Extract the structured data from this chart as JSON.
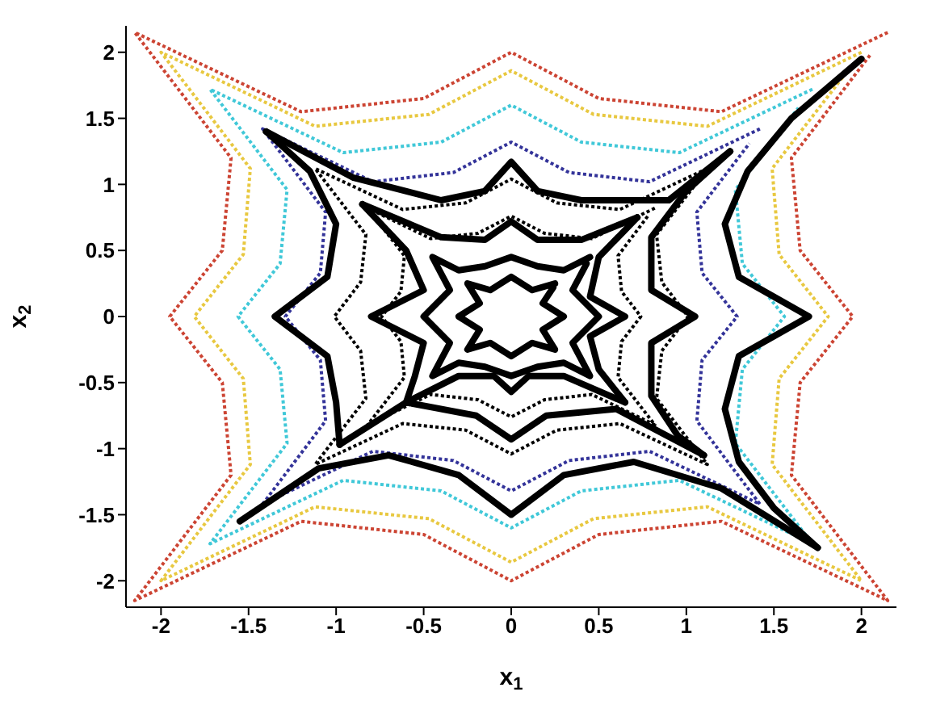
{
  "chart_data": {
    "type": "line",
    "xlabel": "x$_{1}$",
    "ylabel": "x$_{2}$",
    "xlim": [
      -2.2,
      2.2
    ],
    "ylim": [
      -2.2,
      2.2
    ],
    "xticks": [
      -2,
      -1.5,
      -1,
      -0.5,
      0,
      0.5,
      1,
      1.5,
      2
    ],
    "yticks": [
      -2,
      -1.5,
      -1,
      -0.5,
      0,
      0.5,
      1,
      1.5,
      2
    ],
    "grid": false,
    "legend": false,
    "marker": "none",
    "series": [
      {
        "color": "#cc4433",
        "line_style": "dotted",
        "x": [
          2.15,
          1.2,
          0.5,
          0,
          -0.5,
          -1.2,
          -2.15,
          -1.6,
          -1.65,
          -1.95,
          -1.65,
          -1.6,
          -2.15,
          -1.2,
          -0.5,
          0,
          0.5,
          1.2,
          2.15,
          1.6,
          1.65,
          1.95,
          1.65,
          1.6,
          2.05
        ],
        "values": [
          2.15,
          1.55,
          1.65,
          2.0,
          1.65,
          1.55,
          2.15,
          1.2,
          0.5,
          0,
          -0.5,
          -1.2,
          -2.15,
          -1.55,
          -1.65,
          -2.0,
          -1.65,
          -1.55,
          -2.15,
          -1.2,
          -0.5,
          0,
          0.5,
          1.2,
          1.98
        ]
      },
      {
        "color": "#e8c840",
        "line_style": "dotted",
        "x": [
          2.0,
          1.12,
          0.47,
          0,
          -0.47,
          -1.12,
          -2.0,
          -1.49,
          -1.53,
          -1.81,
          -1.53,
          -1.49,
          -2.0,
          -1.12,
          -0.47,
          0,
          0.47,
          1.12,
          2.0,
          1.49,
          1.53,
          1.81,
          1.53,
          1.49,
          1.91
        ],
        "values": [
          2.0,
          1.44,
          1.53,
          1.86,
          1.53,
          1.44,
          2.0,
          1.12,
          0.47,
          0,
          -0.47,
          -1.12,
          -2.0,
          -1.44,
          -1.53,
          -1.86,
          -1.53,
          -1.44,
          -2.0,
          -1.12,
          -0.47,
          0,
          0.47,
          1.12,
          1.84
        ]
      },
      {
        "color": "#40c8d8",
        "line_style": "dotted",
        "x": [
          1.72,
          0.96,
          0.4,
          0,
          -0.4,
          -0.96,
          -1.72,
          -1.28,
          -1.32,
          -1.56,
          -1.32,
          -1.28,
          -1.72,
          -0.96,
          -0.4,
          0,
          0.4,
          0.96,
          1.72,
          1.28,
          1.32,
          1.56,
          1.32,
          1.28,
          1.64
        ],
        "values": [
          1.72,
          1.24,
          1.32,
          1.6,
          1.32,
          1.24,
          1.72,
          0.96,
          0.4,
          0,
          -0.4,
          -0.96,
          -1.72,
          -1.24,
          -1.32,
          -1.6,
          -1.32,
          -1.24,
          -1.72,
          -0.96,
          -0.4,
          0,
          0.4,
          0.96,
          1.58
        ]
      },
      {
        "color": "#333399",
        "line_style": "dotted",
        "x": [
          1.42,
          0.79,
          0.33,
          0,
          -0.33,
          -0.79,
          -1.42,
          -1.06,
          -1.09,
          -1.29,
          -1.09,
          -1.06,
          -1.42,
          -0.79,
          -0.33,
          0,
          0.33,
          0.79,
          1.42,
          1.06,
          1.09,
          1.29,
          1.09,
          1.06,
          1.36
        ],
        "values": [
          1.42,
          1.02,
          1.09,
          1.32,
          1.09,
          1.02,
          1.42,
          0.79,
          0.33,
          0,
          -0.33,
          -0.79,
          -1.42,
          -1.02,
          -1.09,
          -1.32,
          -1.09,
          -1.02,
          -1.42,
          -0.79,
          -0.33,
          0,
          0.33,
          0.79,
          1.31
        ]
      },
      {
        "color": "#000000",
        "line_style": "dotted",
        "x": [
          1.12,
          0.62,
          0.26,
          0,
          -0.26,
          -0.62,
          -1.12,
          -0.83,
          -0.86,
          -1.01,
          -0.86,
          -0.83,
          -1.12,
          -0.62,
          -0.26,
          0,
          0.26,
          0.62,
          1.12,
          0.83,
          0.86,
          1.01,
          0.86,
          0.83,
          1.07
        ],
        "values": [
          1.12,
          0.81,
          0.86,
          1.04,
          0.86,
          0.81,
          1.12,
          0.62,
          0.26,
          0,
          -0.26,
          -0.62,
          -1.12,
          -0.81,
          -0.86,
          -1.04,
          -0.86,
          -0.81,
          -1.12,
          -0.62,
          -0.26,
          0,
          0.26,
          0.62,
          1.03
        ]
      },
      {
        "color": "#000000",
        "line_style": "dotted",
        "x": [
          0.82,
          0.46,
          0.19,
          0,
          -0.19,
          -0.46,
          -0.82,
          -0.61,
          -0.63,
          -0.74,
          -0.63,
          -0.61,
          -0.82,
          -0.46,
          -0.19,
          0,
          0.19,
          0.46,
          0.82,
          0.61,
          0.63,
          0.74,
          0.63,
          0.61,
          0.78
        ],
        "values": [
          0.82,
          0.59,
          0.63,
          0.76,
          0.63,
          0.59,
          0.82,
          0.46,
          0.19,
          0,
          -0.19,
          -0.46,
          -0.82,
          -0.59,
          -0.63,
          -0.76,
          -0.63,
          -0.59,
          -0.82,
          -0.46,
          -0.19,
          0,
          0.19,
          0.46,
          0.76
        ]
      },
      {
        "color": "#000000",
        "line_style": "solid",
        "x": [
          2.0,
          1.6,
          1.35,
          1.22,
          1.3,
          1.7,
          1.3,
          1.22,
          1.3,
          1.5,
          1.75
        ],
        "values": [
          1.95,
          1.5,
          1.1,
          0.7,
          0.3,
          0,
          -0.3,
          -0.7,
          -1.1,
          -1.45,
          -1.75
        ]
      },
      {
        "color": "#000000",
        "line_style": "solid",
        "x": [
          1.75,
          1.2,
          0.7,
          0.3,
          0,
          -0.3,
          -0.7,
          -1.1,
          -1.55
        ],
        "values": [
          -1.75,
          -1.3,
          -1.1,
          -1.2,
          -1.5,
          -1.2,
          -1.05,
          -1.15,
          -1.55
        ]
      },
      {
        "color": "#000000",
        "line_style": "solid",
        "x": [
          -1.4,
          -1.15,
          -1.0,
          -1.05,
          -1.35,
          -1.05,
          -1.0,
          -0.98
        ],
        "values": [
          1.4,
          1.1,
          0.7,
          0.3,
          0,
          -0.3,
          -0.65,
          -0.97
        ]
      },
      {
        "color": "#000000",
        "line_style": "solid",
        "x": [
          -1.4,
          -0.9,
          -0.4,
          -0.15,
          0,
          0.15,
          0.4,
          0.9,
          1.25
        ],
        "values": [
          1.4,
          1.05,
          0.88,
          0.95,
          1.17,
          0.95,
          0.88,
          0.88,
          1.25
        ]
      },
      {
        "color": "#000000",
        "line_style": "solid",
        "x": [
          1.25,
          1.0,
          0.8,
          0.8,
          1.05,
          0.8,
          0.8,
          0.95,
          1.1
        ],
        "values": [
          1.25,
          0.95,
          0.6,
          0.2,
          0,
          -0.2,
          -0.6,
          -0.9,
          -1.05
        ]
      },
      {
        "color": "#000000",
        "line_style": "solid",
        "x": [
          1.1,
          0.6,
          0.2,
          0,
          -0.2,
          -0.6,
          -0.98
        ],
        "values": [
          -1.05,
          -0.7,
          -0.75,
          -0.93,
          -0.75,
          -0.65,
          -0.97
        ]
      },
      {
        "color": "#000000",
        "line_style": "solid",
        "x": [
          -0.85,
          -0.4,
          -0.15,
          0,
          0.15,
          0.4,
          0.72
        ],
        "values": [
          0.85,
          0.6,
          0.58,
          0.72,
          0.58,
          0.58,
          0.75
        ]
      },
      {
        "color": "#000000",
        "line_style": "solid",
        "x": [
          -0.85,
          -0.6,
          -0.5,
          -0.8,
          -0.5,
          -0.55,
          -0.6
        ],
        "values": [
          0.85,
          0.5,
          0.2,
          0,
          -0.2,
          -0.45,
          -0.65
        ]
      },
      {
        "color": "#000000",
        "line_style": "solid",
        "x": [
          -0.6,
          -0.3,
          -0.1,
          0,
          0.1,
          0.3,
          0.65
        ],
        "values": [
          -0.65,
          -0.45,
          -0.45,
          -0.57,
          -0.45,
          -0.45,
          -0.65
        ]
      },
      {
        "color": "#000000",
        "line_style": "solid",
        "x": [
          0.72,
          0.5,
          0.45,
          0.65,
          0.45,
          0.5,
          0.65
        ],
        "values": [
          0.75,
          0.45,
          0.15,
          0,
          -0.15,
          -0.4,
          -0.65
        ]
      },
      {
        "color": "#000000",
        "line_style": "solid",
        "x": [
          0.45,
          0.3,
          0.15,
          0,
          -0.15,
          -0.3,
          -0.45,
          -0.35,
          -0.5,
          -0.35,
          -0.45,
          -0.3,
          -0.15,
          0,
          0.15,
          0.3,
          0.45,
          0.35,
          0.5,
          0.35,
          0.43
        ],
        "values": [
          0.45,
          0.35,
          0.38,
          0.45,
          0.38,
          0.35,
          0.45,
          0.2,
          0,
          -0.2,
          -0.45,
          -0.35,
          -0.38,
          -0.45,
          -0.38,
          -0.35,
          -0.45,
          -0.2,
          0,
          0.2,
          0.4
        ]
      },
      {
        "color": "#000000",
        "line_style": "solid",
        "x": [
          0.25,
          0.12,
          0,
          -0.12,
          -0.25,
          -0.18,
          -0.3,
          -0.18,
          -0.25,
          -0.12,
          0,
          0.12,
          0.25,
          0.18,
          0.3,
          0.18,
          0.24
        ],
        "values": [
          0.25,
          0.2,
          0.3,
          0.2,
          0.25,
          0.1,
          0,
          -0.1,
          -0.25,
          -0.2,
          -0.3,
          -0.2,
          -0.25,
          -0.1,
          0,
          0.1,
          0.22
        ]
      }
    ]
  }
}
